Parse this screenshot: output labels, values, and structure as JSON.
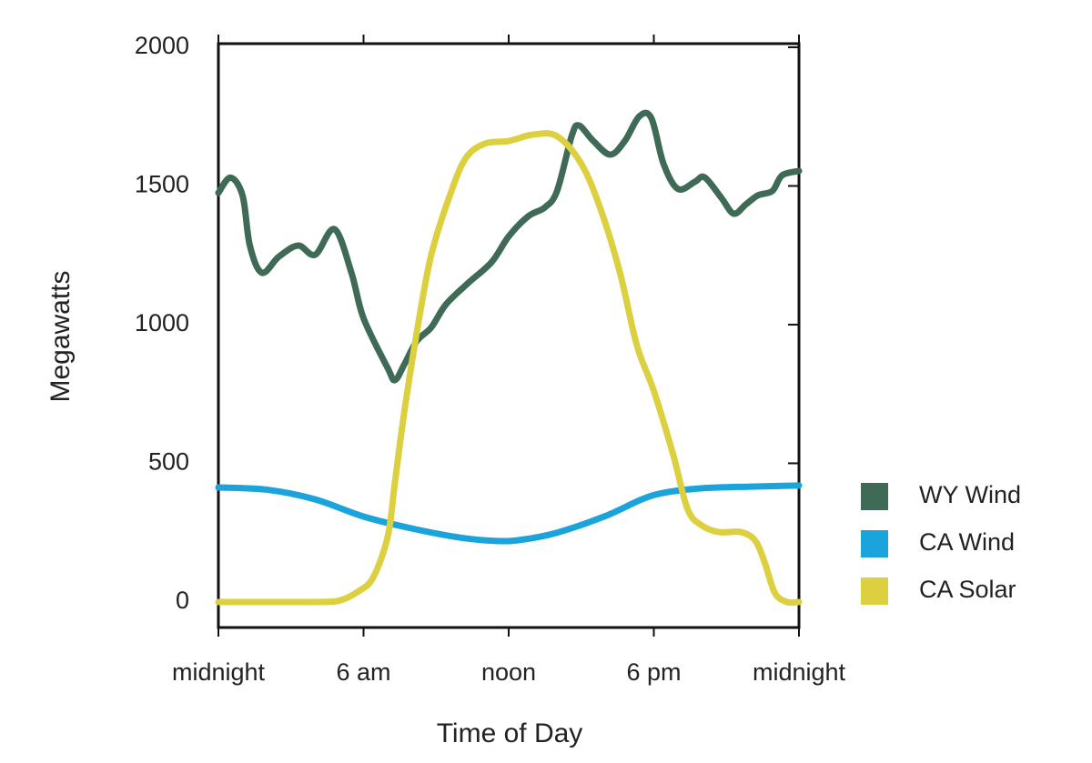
{
  "chart_data": {
    "type": "line",
    "xlabel": "Time of Day",
    "ylabel": "Megawatts",
    "xlim": [
      0,
      24
    ],
    "ylim": [
      -92,
      2013
    ],
    "xticks": [
      {
        "value": 0,
        "label": "midnight"
      },
      {
        "value": 6,
        "label": "6 am"
      },
      {
        "value": 12,
        "label": "noon"
      },
      {
        "value": 18,
        "label": "6 pm"
      },
      {
        "value": 24,
        "label": "midnight"
      }
    ],
    "yticks": [
      0,
      500,
      1000,
      1500,
      2000
    ],
    "legend": "right",
    "grid": false,
    "series": [
      {
        "name": "WY Wind",
        "color": "#3f6b56",
        "x": [
          0,
          0.5,
          1,
          1.3,
          1.8,
          2.5,
          3.3,
          4.0,
          4.8,
          5.5,
          6,
          7,
          7.3,
          7.7,
          8.2,
          8.8,
          9.4,
          10.3,
          11.3,
          12,
          12.8,
          13.5,
          14,
          14.6,
          14.9,
          15.5,
          16.2,
          16.8,
          17.4,
          17.9,
          18.4,
          19,
          19.7,
          20.1,
          20.8,
          21.3,
          21.8,
          22.3,
          22.9,
          23.3,
          24
        ],
        "values": [
          1475,
          1530,
          1465,
          1285,
          1187,
          1245,
          1285,
          1252,
          1344,
          1187,
          1023,
          843,
          800,
          859,
          941,
          990,
          1072,
          1148,
          1226,
          1318,
          1390,
          1423,
          1482,
          1679,
          1718,
          1662,
          1613,
          1662,
          1751,
          1744,
          1580,
          1489,
          1515,
          1531,
          1456,
          1400,
          1433,
          1466,
          1482,
          1538,
          1554
        ]
      },
      {
        "name": "CA Wind",
        "color": "#1ba4dc",
        "x": [
          0,
          2,
          4,
          6,
          8,
          10,
          11.5,
          12.5,
          14,
          16,
          17.5,
          18.5,
          20,
          22,
          24
        ],
        "values": [
          413,
          405,
          370,
          308,
          265,
          232,
          220,
          224,
          250,
          310,
          370,
          395,
          410,
          416,
          420
        ]
      },
      {
        "name": "CA Solar",
        "color": "#dcd040",
        "x": [
          0,
          2,
          4,
          5,
          5.8,
          6.4,
          7,
          7.3,
          7.7,
          8.3,
          8.8,
          9.5,
          10.2,
          11,
          12,
          13,
          14,
          15,
          15.8,
          16.6,
          17.3,
          18,
          18.8,
          19.4,
          20,
          20.7,
          21.6,
          22.2,
          22.6,
          23,
          23.5,
          24
        ],
        "values": [
          0,
          0,
          0,
          5,
          39,
          89,
          236,
          433,
          695,
          1023,
          1252,
          1449,
          1597,
          1652,
          1662,
          1685,
          1679,
          1580,
          1416,
          1187,
          925,
          761,
          531,
          334,
          275,
          252,
          252,
          220,
          138,
          33,
          0,
          0
        ]
      }
    ]
  }
}
